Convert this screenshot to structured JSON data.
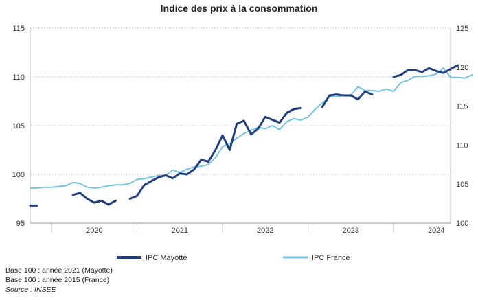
{
  "chart_data": {
    "type": "line",
    "title": "Indice des prix à la consommation",
    "x_labels": [
      "2020",
      "2021",
      "2022",
      "2023",
      "2024"
    ],
    "y_left": {
      "range": [
        95,
        115
      ],
      "ticks": [
        "95",
        "100",
        "105",
        "110",
        "115"
      ]
    },
    "y_right": {
      "range": [
        100,
        125
      ],
      "ticks": [
        "100",
        "105",
        "110",
        "115",
        "120",
        "125"
      ]
    },
    "x_range": [
      "2019-10",
      "2024-09"
    ],
    "grid": true,
    "legend_position": "bottom",
    "series": [
      {
        "name": "IPC Mayotte",
        "axis": "left",
        "color": "#1f3f7f",
        "segments": [
          [
            [
              "2019-10",
              96.8
            ],
            [
              "2019-11",
              96.8
            ]
          ],
          [
            [
              "2020-04",
              97.9
            ],
            [
              "2020-05",
              98.1
            ],
            [
              "2020-06",
              97.5
            ],
            [
              "2020-07",
              97.1
            ],
            [
              "2020-08",
              97.3
            ],
            [
              "2020-09",
              96.9
            ],
            [
              "2020-10",
              97.3
            ]
          ],
          [
            [
              "2020-12",
              97.5
            ],
            [
              "2021-01",
              97.8
            ],
            [
              "2021-02",
              98.9
            ],
            [
              "2021-03",
              99.3
            ],
            [
              "2021-04",
              99.7
            ],
            [
              "2021-05",
              99.9
            ],
            [
              "2021-06",
              99.6
            ],
            [
              "2021-07",
              100.1
            ],
            [
              "2021-08",
              100.0
            ],
            [
              "2021-09",
              100.5
            ],
            [
              "2021-10",
              101.5
            ],
            [
              "2021-11",
              101.3
            ],
            [
              "2021-12",
              102.5
            ],
            [
              "2022-01",
              104.0
            ],
            [
              "2022-02",
              102.5
            ],
            [
              "2022-03",
              105.2
            ],
            [
              "2022-04",
              105.5
            ],
            [
              "2022-05",
              104.1
            ],
            [
              "2022-06",
              104.7
            ],
            [
              "2022-07",
              105.9
            ],
            [
              "2022-08",
              105.6
            ],
            [
              "2022-09",
              105.3
            ],
            [
              "2022-10",
              106.3
            ],
            [
              "2022-11",
              106.7
            ],
            [
              "2022-12",
              106.8
            ]
          ],
          [
            [
              "2023-03",
              106.9
            ],
            [
              "2023-04",
              108.1
            ],
            [
              "2023-05",
              108.2
            ],
            [
              "2023-06",
              108.1
            ],
            [
              "2023-07",
              108.1
            ],
            [
              "2023-08",
              107.7
            ],
            [
              "2023-09",
              108.5
            ],
            [
              "2023-10",
              108.2
            ]
          ],
          [
            [
              "2024-01",
              110.0
            ],
            [
              "2024-02",
              110.2
            ],
            [
              "2024-03",
              110.7
            ],
            [
              "2024-04",
              110.7
            ],
            [
              "2024-05",
              110.5
            ],
            [
              "2024-06",
              110.9
            ],
            [
              "2024-07",
              110.6
            ],
            [
              "2024-08",
              110.4
            ],
            [
              "2024-09",
              110.8
            ],
            [
              "2024-10",
              111.2
            ]
          ]
        ]
      },
      {
        "name": "IPC France",
        "axis": "right",
        "color": "#74c4e0",
        "segments": [
          [
            [
              "2019-10",
              104.5
            ],
            [
              "2019-11",
              104.5
            ],
            [
              "2019-12",
              104.6
            ],
            [
              "2020-01",
              104.6
            ],
            [
              "2020-02",
              104.7
            ],
            [
              "2020-03",
              104.8
            ],
            [
              "2020-04",
              105.2
            ],
            [
              "2020-05",
              105.1
            ],
            [
              "2020-06",
              104.6
            ],
            [
              "2020-07",
              104.5
            ],
            [
              "2020-08",
              104.6
            ],
            [
              "2020-09",
              104.8
            ],
            [
              "2020-10",
              104.9
            ],
            [
              "2020-11",
              104.9
            ],
            [
              "2020-12",
              105.1
            ],
            [
              "2021-01",
              105.6
            ],
            [
              "2021-02",
              105.7
            ],
            [
              "2021-03",
              105.9
            ],
            [
              "2021-04",
              106.1
            ],
            [
              "2021-05",
              106.1
            ],
            [
              "2021-06",
              106.8
            ],
            [
              "2021-07",
              106.5
            ],
            [
              "2021-08",
              106.9
            ],
            [
              "2021-09",
              107.2
            ],
            [
              "2021-10",
              107.3
            ],
            [
              "2021-11",
              107.5
            ],
            [
              "2021-12",
              108.4
            ],
            [
              "2022-01",
              109.8
            ],
            [
              "2022-02",
              110.2
            ],
            [
              "2022-03",
              110.9
            ],
            [
              "2022-04",
              111.5
            ],
            [
              "2022-05",
              111.9
            ],
            [
              "2022-06",
              112.3
            ],
            [
              "2022-07",
              112.1
            ],
            [
              "2022-08",
              112.5
            ],
            [
              "2022-09",
              112.0
            ],
            [
              "2022-10",
              113.0
            ],
            [
              "2022-11",
              113.4
            ],
            [
              "2022-12",
              113.2
            ],
            [
              "2023-01",
              113.6
            ],
            [
              "2023-02",
              114.6
            ],
            [
              "2023-03",
              115.4
            ],
            [
              "2023-04",
              116.2
            ],
            [
              "2023-05",
              116.2
            ],
            [
              "2023-06",
              116.4
            ],
            [
              "2023-07",
              116.4
            ],
            [
              "2023-08",
              117.5
            ],
            [
              "2023-09",
              117.0
            ],
            [
              "2023-10",
              117.0
            ],
            [
              "2023-11",
              116.9
            ],
            [
              "2023-12",
              117.2
            ],
            [
              "2024-01",
              116.9
            ],
            [
              "2024-02",
              118.0
            ],
            [
              "2024-03",
              118.3
            ],
            [
              "2024-04",
              118.8
            ],
            [
              "2024-05",
              118.8
            ],
            [
              "2024-06",
              118.9
            ],
            [
              "2024-07",
              119.1
            ],
            [
              "2024-08",
              119.9
            ],
            [
              "2024-09",
              118.7
            ],
            [
              "2024-10",
              118.7
            ],
            [
              "2024-11",
              118.6
            ],
            [
              "2024-12",
              119.0
            ]
          ]
        ]
      }
    ]
  },
  "notes": {
    "base_mayotte": "Base 100 : année 2021 (Mayotte)",
    "base_france": "Base 100 : année 2015 (France)",
    "source": "Source : INSEE"
  }
}
